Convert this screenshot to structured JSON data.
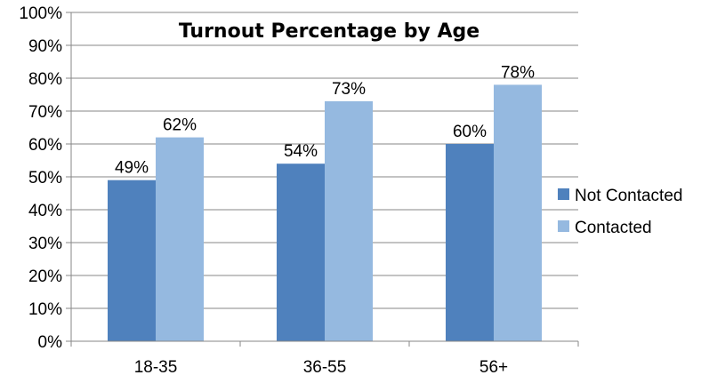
{
  "chart_data": {
    "type": "bar",
    "title": "Turnout Percentage by Age",
    "xlabel": "",
    "ylabel": "",
    "categories": [
      "18-35",
      "36-55",
      "56+"
    ],
    "series": [
      {
        "name": "Not Contacted",
        "values": [
          49,
          54,
          60
        ],
        "labels": [
          "49%",
          "54%",
          "60%"
        ],
        "color": "#4f81bd"
      },
      {
        "name": "Contacted",
        "values": [
          62,
          73,
          78
        ],
        "labels": [
          "62%",
          "73%",
          "78%"
        ],
        "color": "#95b9e0"
      }
    ],
    "ylim": [
      0,
      100
    ],
    "yticks": [
      0,
      10,
      20,
      30,
      40,
      50,
      60,
      70,
      80,
      90,
      100
    ],
    "ytick_labels": [
      "0%",
      "10%",
      "20%",
      "30%",
      "40%",
      "50%",
      "60%",
      "70%",
      "80%",
      "90%",
      "100%"
    ],
    "grid": true,
    "legend_position": "right"
  }
}
